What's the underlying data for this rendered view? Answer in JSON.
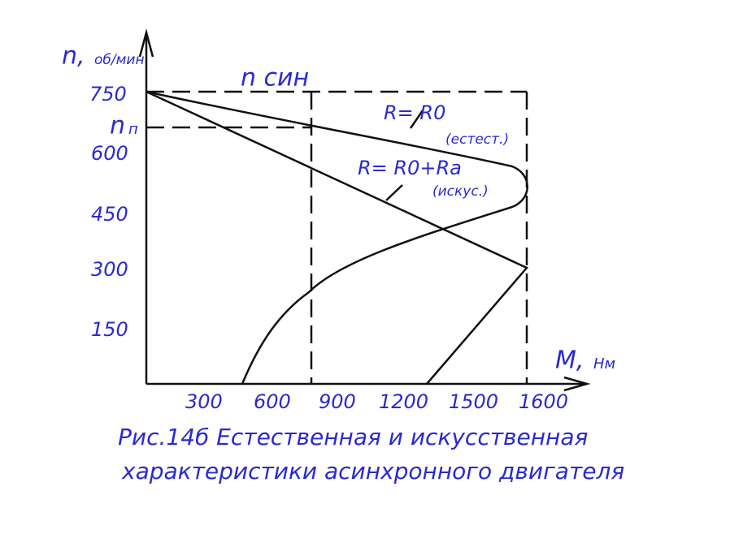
{
  "axes": {
    "y_symbol": "n,",
    "y_unit": "об/мин",
    "x_symbol": "M,",
    "x_unit": "Нм",
    "y_ticks": [
      "750",
      "600",
      "450",
      "300",
      "150"
    ],
    "x_ticks": [
      "300",
      "600",
      "900",
      "1200",
      "1500",
      "1600"
    ],
    "n_sync": "n син",
    "n_p_symbol": "n",
    "n_p_sub": "п"
  },
  "curves": {
    "natural": {
      "label": "R= R0",
      "note": "(естест.)"
    },
    "artificial": {
      "label": "R= R0+Ra",
      "note": "(искус.)"
    }
  },
  "caption": {
    "line1": "Рис.14б Естественная и искусственная",
    "line2": "характеристики асинхронного двигателя"
  }
}
